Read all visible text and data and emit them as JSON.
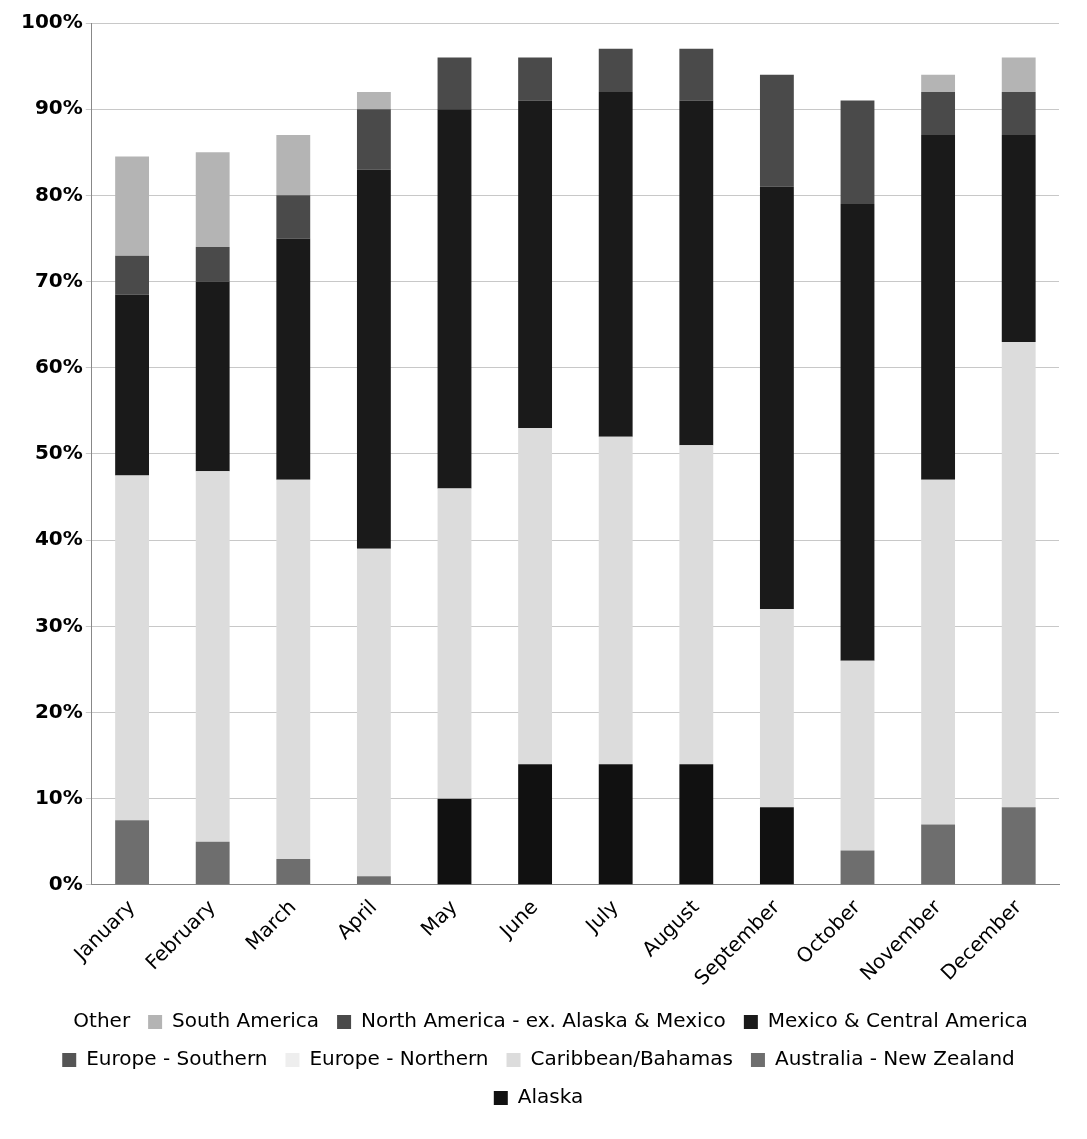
{
  "chart_data": {
    "type": "bar",
    "stacked": true,
    "categories": [
      "January",
      "February",
      "March",
      "April",
      "May",
      "June",
      "July",
      "August",
      "September",
      "October",
      "November",
      "December"
    ],
    "series": [
      {
        "name": "Alaska",
        "color": "#111111",
        "values": [
          null,
          null,
          null,
          null,
          10,
          14,
          14,
          14,
          9,
          null,
          null,
          null
        ]
      },
      {
        "name": "Australia - New Zealand",
        "color": "#6e6e6e",
        "values": [
          7.5,
          5,
          3,
          1,
          null,
          null,
          null,
          null,
          null,
          4,
          7,
          9
        ]
      },
      {
        "name": "Caribbean/Bahamas",
        "color": "#dcdcdc",
        "values": [
          40,
          43,
          44,
          38,
          36,
          39,
          38,
          37,
          23,
          22,
          40,
          54
        ]
      },
      {
        "name": "Europe - Northern",
        "color": "#eeeeee",
        "values": [
          null,
          null,
          null,
          null,
          null,
          null,
          null,
          null,
          null,
          null,
          null,
          null
        ]
      },
      {
        "name": "Europe - Southern",
        "color": "#555555",
        "values": [
          null,
          null,
          null,
          null,
          null,
          null,
          null,
          null,
          null,
          null,
          null,
          null
        ]
      },
      {
        "name": "Mexico & Central America",
        "color": "#1a1a1a",
        "values": [
          21,
          22,
          28,
          44,
          44,
          38,
          40,
          40,
          49,
          53,
          40,
          24
        ]
      },
      {
        "name": "North America - ex. Alaska & Mexico",
        "color": "#4a4a4a",
        "values": [
          4.5,
          4,
          5,
          7,
          6,
          5,
          5,
          6,
          13,
          12,
          5,
          5
        ]
      },
      {
        "name": "South America",
        "color": "#b4b4b4",
        "values": [
          11.5,
          11,
          7,
          2,
          null,
          null,
          null,
          null,
          null,
          null,
          2,
          4
        ]
      },
      {
        "name": "Other",
        "values": [
          null,
          null,
          null,
          null,
          null,
          null,
          null,
          null,
          null,
          null,
          null,
          null
        ]
      }
    ],
    "ylim": [
      0,
      100
    ],
    "yticks": [
      {
        "value": 0,
        "label": "0%"
      },
      {
        "value": 10,
        "label": "10%"
      },
      {
        "value": 20,
        "label": "20%"
      },
      {
        "value": 30,
        "label": "30%"
      },
      {
        "value": 40,
        "label": "40%"
      },
      {
        "value": 50,
        "label": "50%"
      },
      {
        "value": 60,
        "label": "60%"
      },
      {
        "value": 70,
        "label": "70%"
      },
      {
        "value": 80,
        "label": "80%"
      },
      {
        "value": 90,
        "label": "90%"
      },
      {
        "value": 100,
        "label": "100%"
      }
    ],
    "grid": "y",
    "legend": "bottom"
  }
}
